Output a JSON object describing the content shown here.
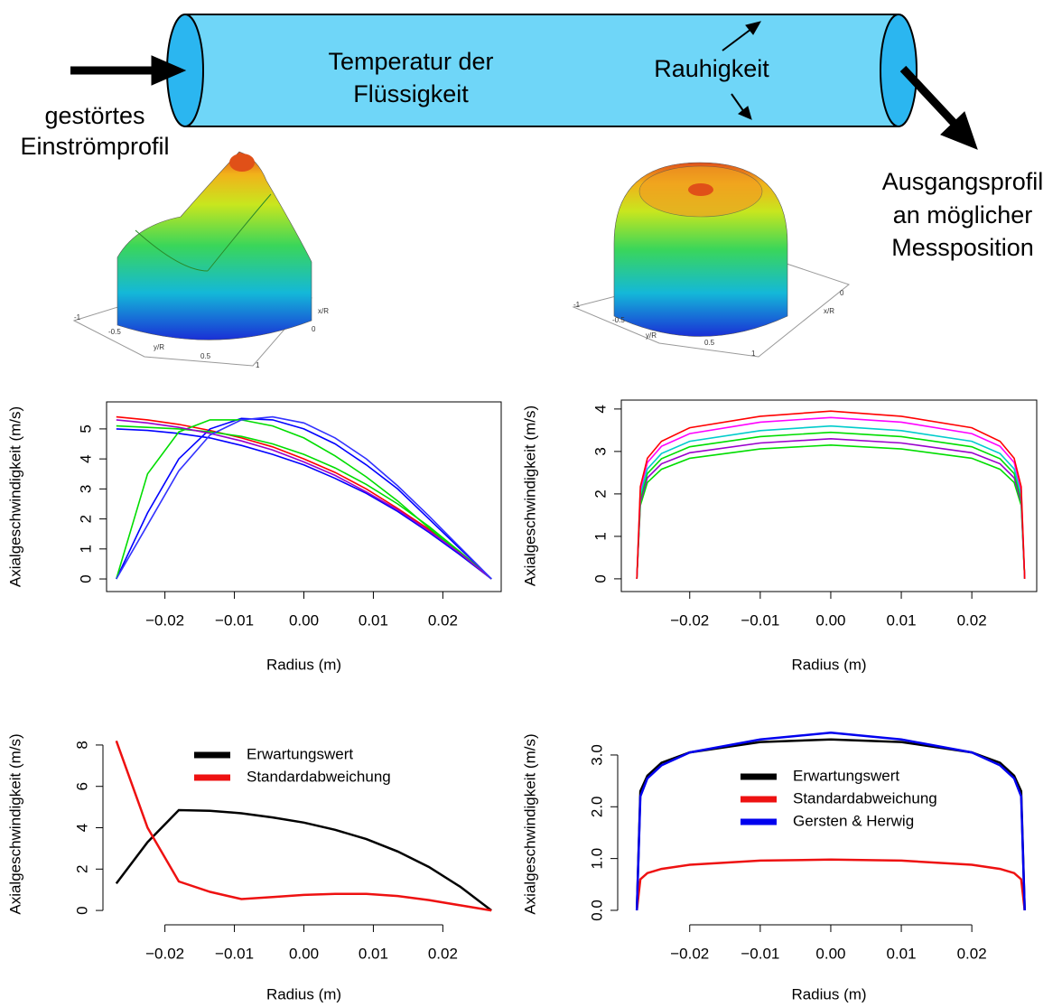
{
  "diagram": {
    "inlet": [
      "gestörtes",
      "Einströmprofil"
    ],
    "fluid": [
      "Temperatur der",
      "Flüssigkeit"
    ],
    "wall": "Rauhigkeit",
    "outlet": [
      "Ausgangsprofil",
      "an möglicher",
      "Messposition"
    ],
    "surfaces": [
      {
        "axes": [
          "y/R",
          "x/R"
        ],
        "ticks": [
          "-1",
          "-0.5",
          "0",
          "0.5",
          "1"
        ]
      },
      {
        "axes": [
          "y/R",
          "x/R"
        ],
        "ticks": [
          "-1",
          "-0.5",
          "0",
          "0.5",
          "1"
        ]
      }
    ]
  },
  "chart_data": [
    {
      "type": "line",
      "xlabel": "Radius (m)",
      "ylabel": "Axialgeschwindigkeit (m/s)",
      "box": true,
      "x": [
        -0.027,
        -0.0225,
        -0.018,
        -0.0135,
        -0.009,
        -0.0045,
        0,
        0.0045,
        0.009,
        0.0135,
        0.018,
        0.0225,
        0.027
      ],
      "series": [
        {
          "color": "#ff0000",
          "values": [
            5.4,
            5.3,
            5.15,
            4.95,
            4.7,
            4.4,
            4.0,
            3.55,
            3.0,
            2.35,
            1.65,
            0.85,
            0
          ]
        },
        {
          "color": "#0000ff",
          "values": [
            5.0,
            4.95,
            4.85,
            4.7,
            4.45,
            4.15,
            3.8,
            3.35,
            2.85,
            2.25,
            1.55,
            0.8,
            0
          ]
        },
        {
          "color": "#0000ff",
          "values": [
            0,
            2.2,
            4.0,
            5.0,
            5.35,
            5.3,
            5.0,
            4.5,
            3.8,
            3.0,
            2.0,
            1.0,
            0
          ]
        },
        {
          "color": "#00dd00",
          "values": [
            0,
            3.5,
            4.9,
            5.3,
            5.3,
            5.1,
            4.7,
            4.1,
            3.4,
            2.6,
            1.7,
            0.85,
            0
          ]
        },
        {
          "color": "#00dd00",
          "values": [
            5.1,
            5.05,
            5.0,
            4.9,
            4.75,
            4.5,
            4.15,
            3.7,
            3.15,
            2.5,
            1.75,
            0.9,
            0
          ]
        },
        {
          "color": "#9900cc",
          "values": [
            5.3,
            5.2,
            5.05,
            4.85,
            4.6,
            4.3,
            3.9,
            3.45,
            2.9,
            2.3,
            1.6,
            0.85,
            0
          ]
        },
        {
          "color": "#3333ff",
          "values": [
            0,
            1.8,
            3.6,
            4.8,
            5.3,
            5.4,
            5.2,
            4.7,
            4.0,
            3.1,
            2.1,
            1.05,
            0
          ]
        }
      ],
      "xlim": [
        -0.0284,
        0.0284
      ],
      "ylim": [
        -0.42,
        5.9
      ],
      "xticks": [
        {
          "value": -0.02,
          "label": "−0.02"
        },
        {
          "value": -0.01,
          "label": "−0.01"
        },
        {
          "value": 0,
          "label": "0.00"
        },
        0.01,
        0.02
      ],
      "yticks": [
        0,
        1,
        2,
        3,
        4,
        5
      ]
    },
    {
      "type": "line",
      "xlabel": "Radius (m)",
      "ylabel": "Axialgeschwindigkeit (m/s)",
      "box": true,
      "x": [
        -0.0275,
        -0.027,
        -0.026,
        -0.024,
        -0.02,
        -0.01,
        0,
        0.01,
        0.02,
        0.024,
        0.026,
        0.027,
        0.0275
      ],
      "series": [
        {
          "color": "#00dd00",
          "values": [
            0,
            1.73,
            2.27,
            2.58,
            2.84,
            3.06,
            3.15,
            3.06,
            2.84,
            2.58,
            2.27,
            1.73,
            0
          ]
        },
        {
          "color": "#9900cc",
          "values": [
            0,
            1.82,
            2.38,
            2.71,
            2.97,
            3.2,
            3.3,
            3.2,
            2.97,
            2.71,
            2.38,
            1.82,
            0
          ]
        },
        {
          "color": "#00dd00",
          "values": [
            0,
            1.9,
            2.48,
            2.83,
            3.11,
            3.35,
            3.45,
            3.35,
            3.11,
            2.83,
            2.48,
            1.9,
            0
          ]
        },
        {
          "color": "#00cccc",
          "values": [
            0,
            1.98,
            2.59,
            2.95,
            3.24,
            3.49,
            3.6,
            3.49,
            3.24,
            2.95,
            2.59,
            1.98,
            0
          ]
        },
        {
          "color": "#ff00ff",
          "values": [
            0,
            2.09,
            2.74,
            3.12,
            3.42,
            3.69,
            3.8,
            3.69,
            3.42,
            3.12,
            2.74,
            2.09,
            0
          ]
        },
        {
          "color": "#ff0000",
          "values": [
            0,
            2.17,
            2.84,
            3.24,
            3.56,
            3.83,
            3.95,
            3.83,
            3.56,
            3.24,
            2.84,
            2.17,
            0
          ]
        }
      ],
      "xlim": [
        -0.0297,
        0.0292
      ],
      "ylim": [
        -0.3,
        4.21
      ],
      "xticks": [
        {
          "value": -0.02,
          "label": "−0.02"
        },
        {
          "value": -0.01,
          "label": "−0.01"
        },
        {
          "value": 0,
          "label": "0.00"
        },
        0.01,
        0.02
      ],
      "yticks": [
        0,
        1,
        2,
        3,
        4
      ]
    },
    {
      "type": "line",
      "xlabel": "Radius (m)",
      "ylabel": "Axialgeschwindigkeit (m/s)",
      "box": false,
      "legend": "upper center",
      "x": [
        -0.027,
        -0.0225,
        -0.018,
        -0.0135,
        -0.009,
        -0.0045,
        0,
        0.0045,
        0.009,
        0.0135,
        0.018,
        0.0225,
        0.027
      ],
      "series": [
        {
          "name": "Erwartungswert",
          "color": "#000000",
          "values": [
            1.3,
            3.3,
            4.85,
            4.82,
            4.7,
            4.5,
            4.25,
            3.9,
            3.45,
            2.85,
            2.1,
            1.15,
            0
          ]
        },
        {
          "name": "Standardabweichung",
          "color": "#ee1111",
          "values": [
            8.2,
            4.0,
            1.4,
            0.9,
            0.55,
            0.65,
            0.75,
            0.8,
            0.8,
            0.7,
            0.5,
            0.25,
            0
          ]
        }
      ],
      "xlim": [
        -0.0284,
        0.0284
      ],
      "ylim": [
        -0.52,
        8.87
      ],
      "xticks": [
        {
          "value": -0.02,
          "label": "−0.02"
        },
        {
          "value": -0.01,
          "label": "−0.01"
        },
        {
          "value": 0,
          "label": "0.00"
        },
        0.01,
        0.02
      ],
      "yticks": [
        0,
        2,
        4,
        6,
        8
      ]
    },
    {
      "type": "line",
      "xlabel": "Radius (m)",
      "ylabel": "Axialgeschwindigkeit (m/s)",
      "box": false,
      "legend": "upper center",
      "x": [
        -0.0275,
        -0.027,
        -0.026,
        -0.024,
        -0.02,
        -0.01,
        0,
        0.01,
        0.02,
        0.024,
        0.026,
        0.027,
        0.0275
      ],
      "series": [
        {
          "name": "Erwartungswert",
          "color": "#000000",
          "values": [
            0,
            2.3,
            2.6,
            2.85,
            3.05,
            3.25,
            3.3,
            3.25,
            3.05,
            2.85,
            2.6,
            2.3,
            0
          ]
        },
        {
          "name": "Standardabweichung",
          "color": "#ee1111",
          "values": [
            0,
            0.6,
            0.72,
            0.8,
            0.88,
            0.96,
            0.98,
            0.96,
            0.88,
            0.8,
            0.72,
            0.6,
            0
          ]
        },
        {
          "name": "Gersten & Herwig",
          "color": "#0000ee",
          "values": [
            0,
            2.2,
            2.55,
            2.8,
            3.05,
            3.3,
            3.43,
            3.3,
            3.05,
            2.8,
            2.55,
            2.2,
            0
          ]
        }
      ],
      "xlim": [
        -0.0297,
        0.0292
      ],
      "ylim": [
        -0.21,
        3.54
      ],
      "xticks": [
        {
          "value": -0.02,
          "label": "−0.02"
        },
        {
          "value": -0.01,
          "label": "−0.01"
        },
        {
          "value": 0,
          "label": "0.00"
        },
        0.01,
        0.02
      ],
      "yticks": [
        {
          "value": 0,
          "label": "0.0"
        },
        {
          "value": 1,
          "label": "1.0"
        },
        {
          "value": 2,
          "label": "2.0"
        },
        {
          "value": 3,
          "label": "3.0"
        }
      ]
    }
  ]
}
